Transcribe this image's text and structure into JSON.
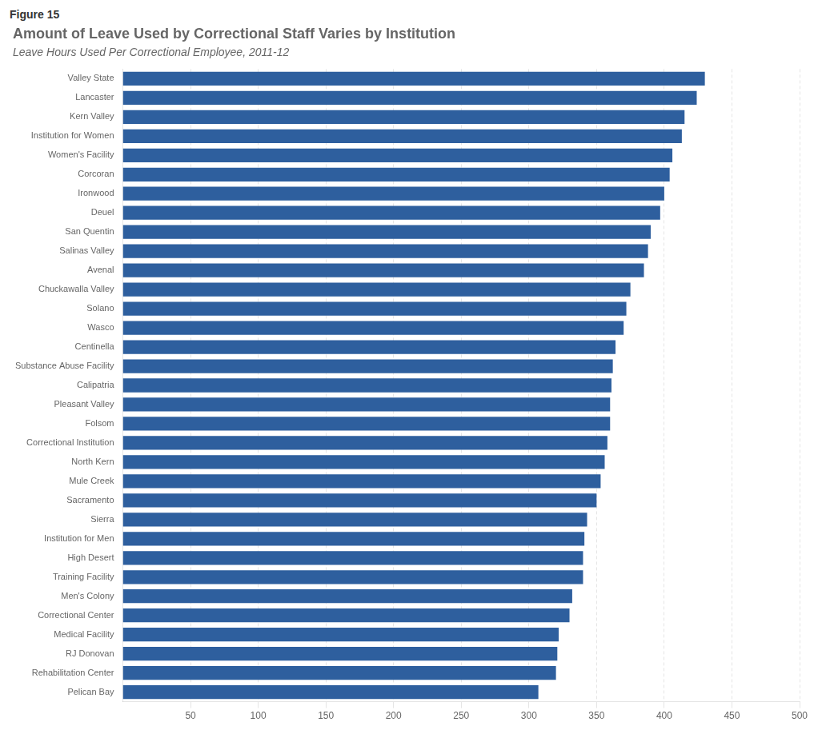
{
  "chart_data": {
    "type": "bar",
    "orientation": "horizontal",
    "title": "Amount of Leave Used by Correctional Staff Varies by Institution",
    "subtitle": "Leave Hours Used Per Correctional Employee, 2011-12",
    "annotations": [
      "Figure 15"
    ],
    "categories": [
      "Valley State",
      "Lancaster",
      "Kern Valley",
      "Institution for Women",
      "Women's Facility",
      "Corcoran",
      "Ironwood",
      "Deuel",
      "San Quentin",
      "Salinas Valley",
      "Avenal",
      "Chuckawalla Valley",
      "Solano",
      "Wasco",
      "Centinella",
      "Substance Abuse Facility",
      "Calipatria",
      "Pleasant Valley",
      "Folsom",
      "Correctional Institution",
      "North Kern",
      "Mule Creek",
      "Sacramento",
      "Sierra",
      "Institution for Men",
      "High Desert",
      "Training Facility",
      "Men's Colony",
      "Correctional Center",
      "Medical Facility",
      "RJ Donovan",
      "Rehabilitation Center",
      "Pelican Bay"
    ],
    "values": [
      430,
      424,
      415,
      413,
      406,
      404,
      400,
      397,
      390,
      388,
      385,
      375,
      372,
      370,
      364,
      362,
      361,
      360,
      360,
      358,
      356,
      353,
      350,
      343,
      341,
      340,
      340,
      332,
      330,
      322,
      321,
      320,
      307
    ],
    "color": "#2E5F9E",
    "xlim": [
      0,
      500
    ],
    "xticks": [
      50,
      100,
      150,
      200,
      250,
      300,
      350,
      400,
      450,
      500
    ],
    "grid": true
  }
}
